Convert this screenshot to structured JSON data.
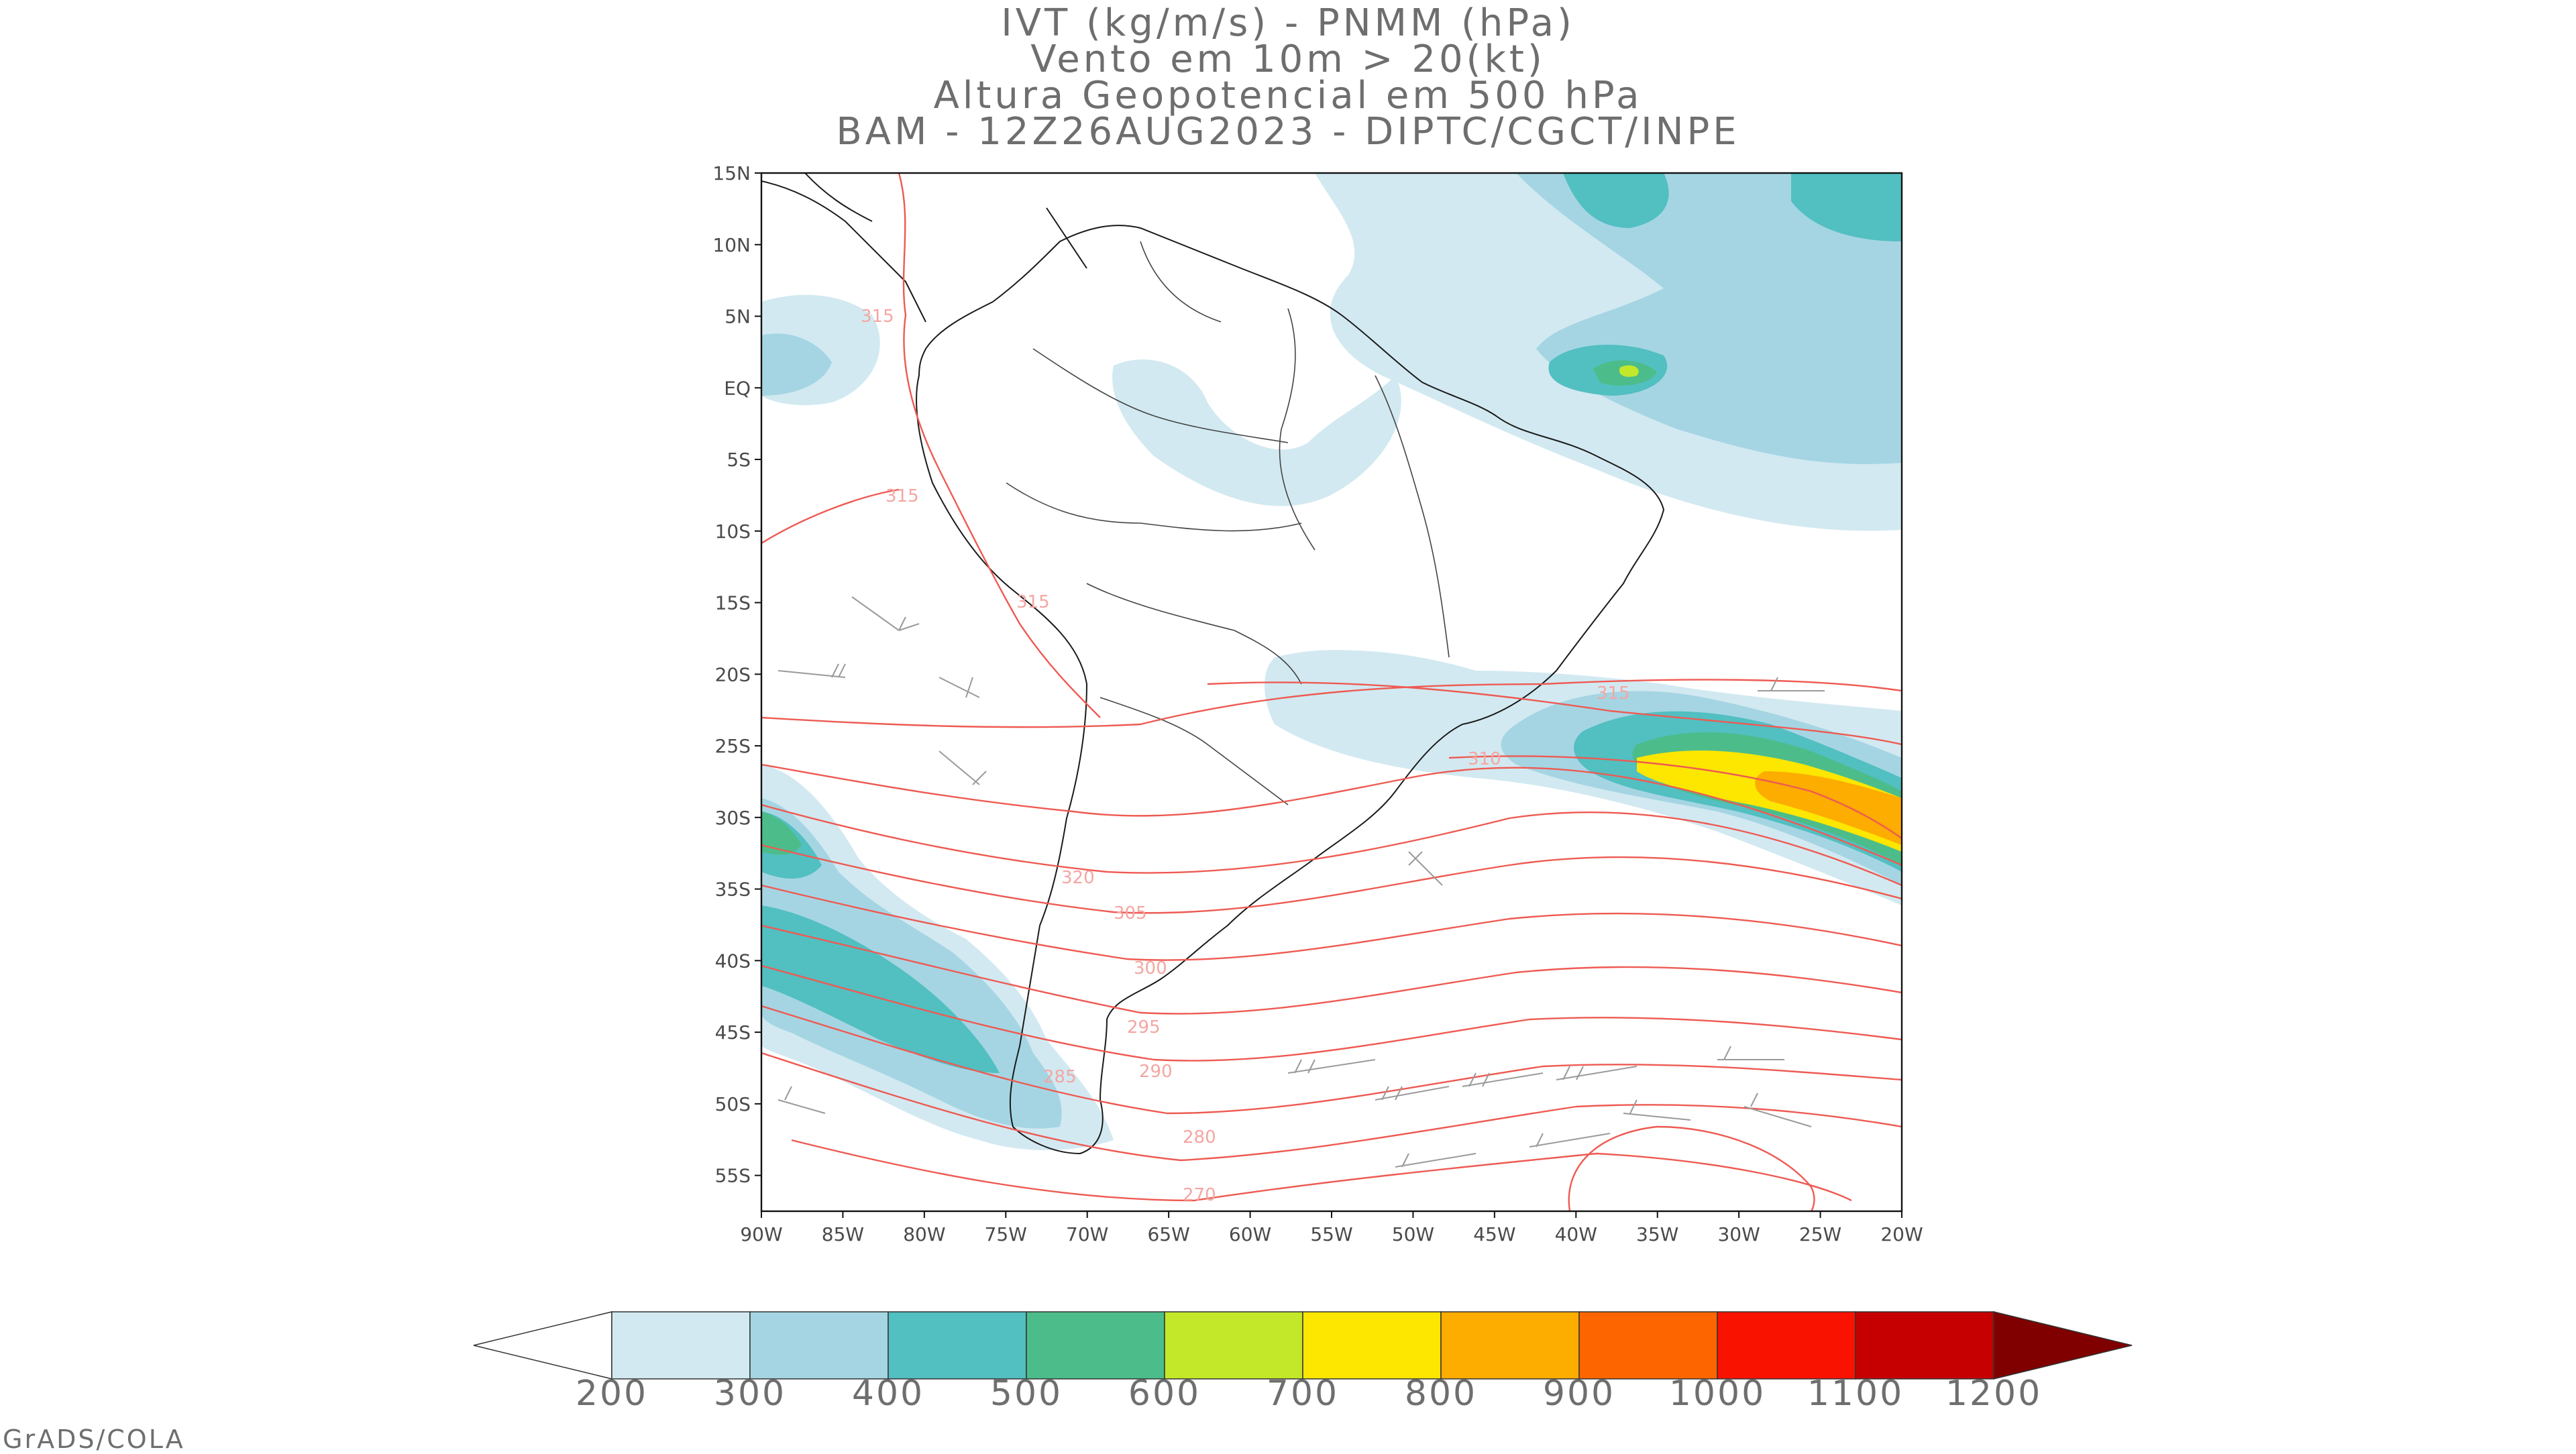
{
  "title_lines": [
    "IVT (kg/m/s) - PNMM (hPa)",
    "Vento em 10m > 20(kt)",
    "Altura Geopotencial em 500 hPa",
    "BAM - 12Z26AUG2023 - DIPTC/CGCT/INPE"
  ],
  "lat_labels": [
    "15N",
    "10N",
    "5N",
    "EQ",
    "5S",
    "10S",
    "15S",
    "20S",
    "25S",
    "30S",
    "35S",
    "40S",
    "45S",
    "50S",
    "55S"
  ],
  "lon_labels": [
    "90W",
    "85W",
    "80W",
    "75W",
    "70W",
    "65W",
    "60W",
    "55W",
    "50W",
    "45W",
    "40W",
    "35W",
    "30W",
    "25W",
    "20W"
  ],
  "contour_labels": [
    "315",
    "315",
    "315",
    "315",
    "310",
    "320",
    "305",
    "300",
    "295",
    "290",
    "285",
    "280",
    "270"
  ],
  "colorbar": {
    "labels": [
      "200",
      "300",
      "400",
      "500",
      "600",
      "700",
      "800",
      "900",
      "1000",
      "1100",
      "1200"
    ],
    "colors": [
      "#d2e9f1",
      "#a5d5e3",
      "#52bfc1",
      "#4cbd8a",
      "#c3e82a",
      "#fde600",
      "#fdac00",
      "#fd6500",
      "#fa1200",
      "#c60000",
      "#800000"
    ]
  },
  "credit": "GrADS/COLA"
}
